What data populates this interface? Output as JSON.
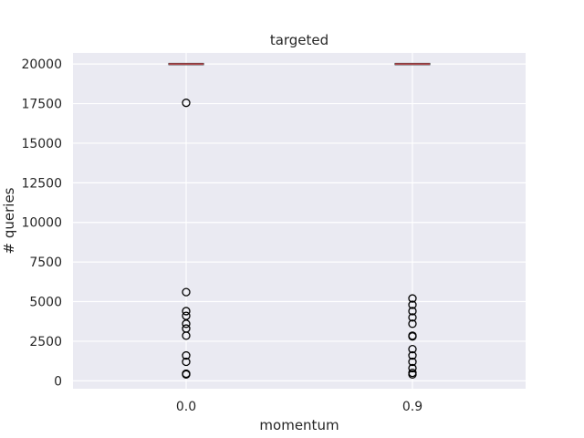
{
  "chart_data": {
    "type": "box",
    "title": "targeted",
    "xlabel": "momentum",
    "ylabel": "# queries",
    "categories": [
      "0.0",
      "0.9"
    ],
    "ylim": [
      -500,
      20700
    ],
    "yticks": [
      0,
      2500,
      5000,
      7500,
      10000,
      12500,
      15000,
      17500,
      20000
    ],
    "ytick_labels": [
      "0",
      "2500",
      "5000",
      "7500",
      "10000",
      "12500",
      "15000",
      "17500",
      "20000"
    ],
    "grid": true,
    "boxes": [
      {
        "category": "0.0",
        "median": 20000,
        "q1": 20000,
        "q3": 20000,
        "whisker_low": 20000,
        "whisker_high": 20000,
        "outliers": [
          17550,
          5600,
          4400,
          4100,
          3600,
          3300,
          2850,
          1600,
          1200,
          450,
          400
        ]
      },
      {
        "category": "0.9",
        "median": 20000,
        "q1": 20000,
        "q3": 20000,
        "whisker_low": 20000,
        "whisker_high": 20000,
        "outliers": [
          5200,
          4800,
          4400,
          4000,
          3600,
          2850,
          2800,
          2000,
          1600,
          1200,
          800,
          500,
          400
        ]
      }
    ],
    "colors": {
      "background": "#eaeaf2",
      "grid": "#ffffff",
      "median": "#c44e52",
      "box": "#262626"
    }
  }
}
